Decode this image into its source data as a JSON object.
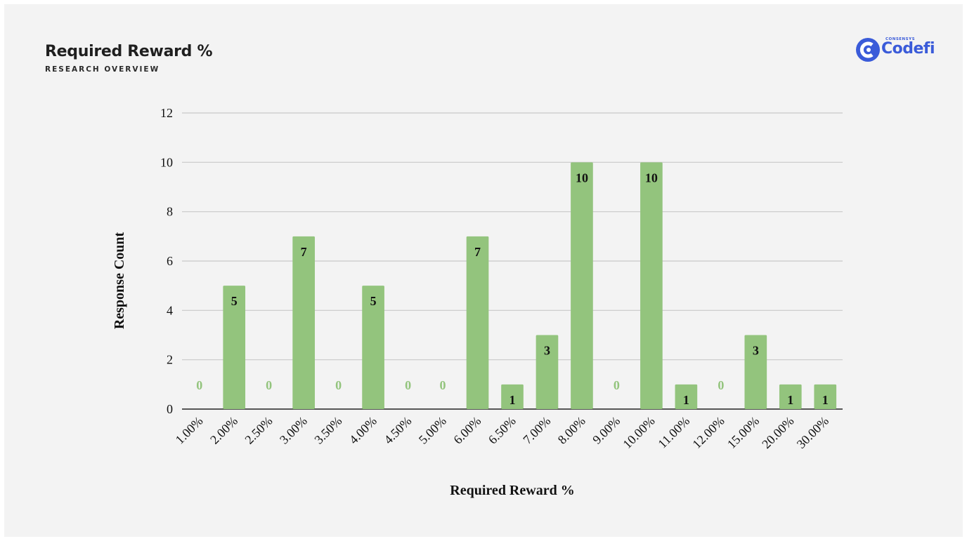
{
  "header": {
    "title": "Required Reward %",
    "subtitle": "RESEARCH OVERVIEW"
  },
  "logo": {
    "small_text": "CONSENSYS",
    "text": "Codefi",
    "icon": "codefi-logo-icon",
    "color": "#3a5bd9"
  },
  "colors": {
    "bar": "#93c47d",
    "zero_label": "#93c47d",
    "label": "#111111",
    "grid": "#c8c8c8"
  },
  "chart_data": {
    "type": "bar",
    "title": "",
    "xlabel": "Required Reward %",
    "ylabel": "Response Count",
    "categories": [
      "1.00%",
      "2.00%",
      "2.50%",
      "3.00%",
      "3.50%",
      "4.00%",
      "4.50%",
      "5.00%",
      "6.00%",
      "6.50%",
      "7.00%",
      "8.00%",
      "9.00%",
      "10.00%",
      "11.00%",
      "12.00%",
      "15.00%",
      "20.00%",
      "30.00%"
    ],
    "values": [
      0,
      5,
      0,
      7,
      0,
      5,
      0,
      0,
      7,
      1,
      3,
      10,
      0,
      10,
      1,
      0,
      3,
      1,
      1
    ],
    "ylim": [
      0,
      12
    ],
    "yticks": [
      0,
      2,
      4,
      6,
      8,
      10,
      12
    ],
    "grid": true,
    "data_labels": true,
    "legend": "none"
  }
}
